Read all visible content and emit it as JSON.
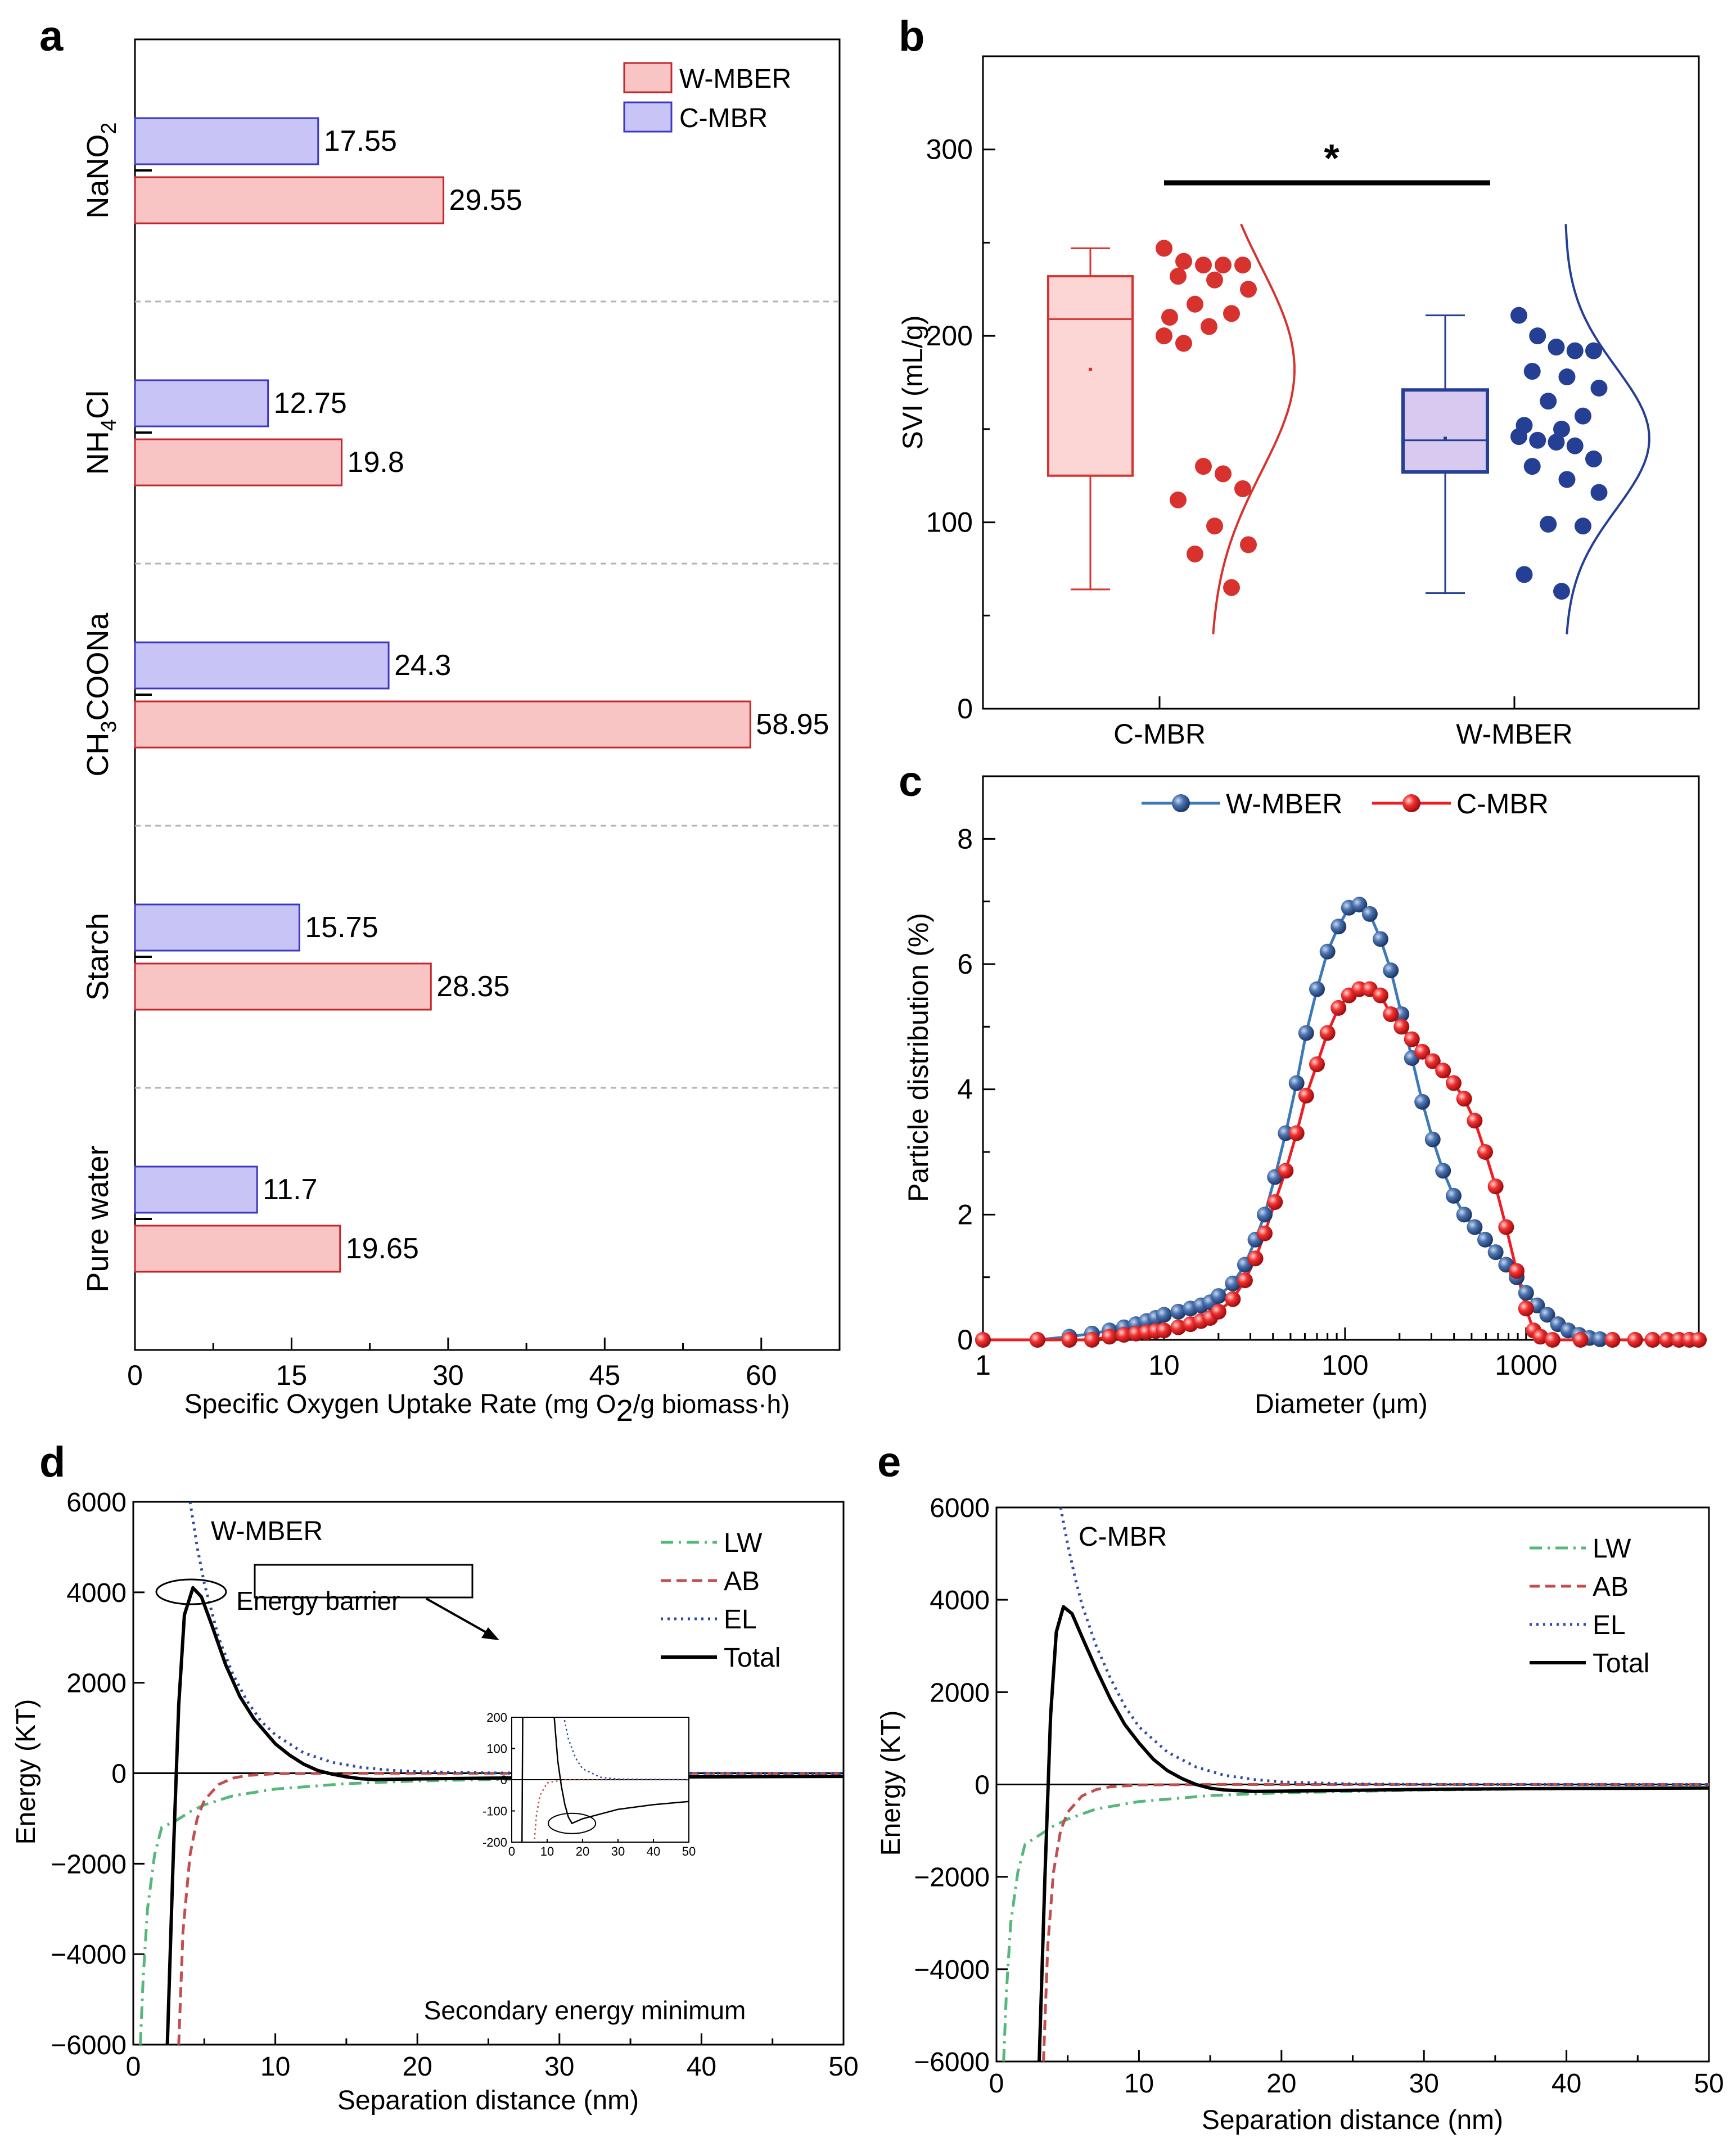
{
  "colors": {
    "wmber_fill": "#f9c4c4",
    "wmber_edge": "#c4262a",
    "cmbr_fill": "#c9c4f6",
    "cmbr_edge": "#3a37c2",
    "b_red": "#d7322e",
    "b_blue": "#243f93",
    "c_blue": "#2f5f9d",
    "c_blue_line": "#3c79b8",
    "c_red": "#ee1d24",
    "lw": "#55b77a",
    "ab": "#c0504d",
    "el": "#2f4aa3",
    "total": "#000000"
  },
  "chart_data": [
    {
      "panel": "a",
      "type": "bar",
      "orientation": "horizontal",
      "panel_label": "a",
      "categories": [
        "NaNO2",
        "NH4Cl",
        "CH3COONa",
        "Starch",
        "Pure water"
      ],
      "category_labels": [
        {
          "main": "NaNO",
          "sub": "2",
          "tail": ""
        },
        {
          "main": "NH",
          "sub": "4",
          "tail": "Cl"
        },
        {
          "main": "CH",
          "sub": "3",
          "tail": "COONa"
        },
        {
          "main": "Starch",
          "sub": "",
          "tail": ""
        },
        {
          "main": "Pure water",
          "sub": "",
          "tail": ""
        }
      ],
      "series": [
        {
          "name": "W-MBER",
          "values": [
            29.55,
            19.8,
            58.95,
            28.35,
            19.65
          ],
          "labels": [
            "29.55",
            "19.8",
            "58.95",
            "28.35",
            "19.65"
          ]
        },
        {
          "name": "C-MBR",
          "values": [
            17.55,
            12.75,
            24.3,
            15.75,
            11.7
          ],
          "labels": [
            "17.55",
            "12.75",
            "24.3",
            "15.75",
            "11.7"
          ]
        }
      ],
      "legend": [
        "W-MBER",
        "C-MBR"
      ],
      "xlabel": {
        "pre": "Specific Oxygen Uptake Rate ",
        "unit_a": "(mg O",
        "unit_sub": "2",
        "unit_b": "/g biomass·h)"
      },
      "xlim": [
        0,
        67.5
      ],
      "xticks": [
        0,
        15,
        30,
        45,
        60
      ],
      "xtick_labels": [
        "0",
        "15",
        "30",
        "45",
        "60"
      ],
      "grid": false
    },
    {
      "panel": "b",
      "type": "box",
      "panel_label": "b",
      "ylabel": "SVI (mL/g)",
      "ylim": [
        0,
        350
      ],
      "yticks": [
        0,
        100,
        200,
        300
      ],
      "ytick_labels": [
        "0",
        "100",
        "200",
        "300"
      ],
      "categories": [
        "C-MBR",
        "W-MBER"
      ],
      "significance": "*",
      "groups": [
        {
          "name": "C-MBR",
          "min": 64,
          "q1": 125,
          "median": 209,
          "q3": 232,
          "max": 247,
          "mean": 182,
          "points": [
            247,
            240,
            238,
            238,
            238,
            232,
            230,
            225,
            217,
            212,
            210,
            205,
            200,
            196,
            130,
            126,
            118,
            112,
            98,
            88,
            83,
            65
          ]
        },
        {
          "name": "W-MBER",
          "min": 62,
          "q1": 127,
          "median": 144,
          "q3": 171,
          "max": 211,
          "mean": 145,
          "points": [
            211,
            200,
            194,
            192,
            192,
            181,
            178,
            172,
            165,
            157,
            152,
            150,
            146,
            144,
            143,
            141,
            134,
            130,
            123,
            116,
            99,
            98,
            72,
            63
          ]
        }
      ]
    },
    {
      "panel": "c",
      "type": "line",
      "panel_label": "c",
      "xlabel": "Diameter (μm)",
      "ylabel": "Particle distribution (%)",
      "xscale": "log",
      "xlim": [
        1,
        9000
      ],
      "ylim": [
        0,
        9
      ],
      "xticks": [
        1,
        10,
        100,
        1000
      ],
      "xtick_labels": [
        "1",
        "10",
        "100",
        "1000"
      ],
      "yticks": [
        0,
        2,
        4,
        6,
        8
      ],
      "ytick_labels": [
        "0",
        "2",
        "4",
        "6",
        "8"
      ],
      "legend": [
        "W-MBER",
        "C-MBR"
      ],
      "legend_position": "top-center",
      "series": [
        {
          "name": "W-MBER",
          "x": [
            1,
            2,
            3,
            4,
            5,
            6,
            7,
            8,
            9,
            10,
            12,
            14,
            16,
            18,
            20,
            24,
            28,
            32,
            36,
            41,
            47,
            54,
            61,
            70,
            80,
            92,
            105,
            120,
            137,
            157,
            179,
            205,
            234,
            267,
            305,
            348,
            398,
            455,
            520,
            594,
            679,
            776,
            887,
            1000,
            1150,
            1310,
            1500,
            1710,
            1960,
            2240,
            2560,
            3000,
            4000,
            5000,
            6000,
            7000,
            8000,
            9000
          ],
          "y": [
            0,
            0,
            0.05,
            0.1,
            0.15,
            0.2,
            0.25,
            0.3,
            0.35,
            0.4,
            0.45,
            0.5,
            0.55,
            0.6,
            0.7,
            0.9,
            1.2,
            1.6,
            2.0,
            2.6,
            3.3,
            4.1,
            4.9,
            5.6,
            6.2,
            6.6,
            6.9,
            6.95,
            6.8,
            6.4,
            5.9,
            5.2,
            4.5,
            3.8,
            3.2,
            2.7,
            2.3,
            2.0,
            1.8,
            1.6,
            1.4,
            1.2,
            1.0,
            0.75,
            0.55,
            0.4,
            0.25,
            0.15,
            0.08,
            0.03,
            0.01,
            0,
            0,
            0,
            0,
            0,
            0,
            0
          ]
        },
        {
          "name": "C-MBR",
          "x": [
            1,
            2,
            3,
            4,
            5,
            6,
            7,
            8,
            9,
            10,
            12,
            14,
            16,
            18,
            20,
            24,
            28,
            32,
            36,
            41,
            47,
            54,
            61,
            70,
            80,
            92,
            105,
            120,
            137,
            157,
            179,
            205,
            234,
            267,
            305,
            348,
            398,
            455,
            520,
            594,
            679,
            776,
            887,
            1000,
            1100,
            1200,
            1400,
            2000,
            3000,
            4000,
            5000,
            6000,
            7000,
            8000,
            9000
          ],
          "y": [
            0,
            0,
            0,
            0,
            0.05,
            0.08,
            0.1,
            0.12,
            0.14,
            0.15,
            0.2,
            0.25,
            0.3,
            0.35,
            0.45,
            0.65,
            0.95,
            1.3,
            1.7,
            2.2,
            2.7,
            3.3,
            3.9,
            4.4,
            4.9,
            5.3,
            5.5,
            5.6,
            5.6,
            5.5,
            5.2,
            5.0,
            4.8,
            4.6,
            4.45,
            4.3,
            4.1,
            3.85,
            3.5,
            3.0,
            2.45,
            1.8,
            1.1,
            0.5,
            0.15,
            0.05,
            0,
            0,
            0,
            0,
            0,
            0,
            0,
            0,
            0
          ]
        }
      ]
    },
    {
      "panel": "d",
      "type": "line",
      "panel_label": "d",
      "title": "W-MBER",
      "xlabel": "Separation distance (nm)",
      "ylabel": "Energy (KT)",
      "xlim": [
        0,
        50
      ],
      "ylim": [
        -6000,
        6000
      ],
      "xticks": [
        0,
        10,
        20,
        30,
        40,
        50
      ],
      "xtick_labels": [
        "0",
        "10",
        "20",
        "30",
        "40",
        "50"
      ],
      "yticks": [
        -6000,
        -4000,
        -2000,
        0,
        2000,
        4000,
        6000
      ],
      "ytick_labels": [
        "−6000",
        "−4000",
        "−2000",
        "0",
        "2000",
        "4000",
        "6000"
      ],
      "legend": [
        "LW",
        "AB",
        "EL",
        "Total"
      ],
      "legend_position": "top-right",
      "annotations": [
        "Energy barrier",
        "Secondary energy minimum"
      ],
      "barrier": {
        "x": 4.2,
        "y": 4100
      },
      "secondary_minimum": {
        "x": 17,
        "y": -140
      },
      "series": [
        {
          "name": "LW",
          "x": [
            0.5,
            0.7,
            1,
            1.5,
            2,
            3,
            4,
            5,
            7,
            10,
            15,
            20,
            30,
            40,
            50
          ],
          "y": [
            -6000,
            -4500,
            -3000,
            -1800,
            -1200,
            -1050,
            -850,
            -700,
            -500,
            -350,
            -230,
            -170,
            -110,
            -85,
            -70
          ]
        },
        {
          "name": "AB",
          "x": [
            3.2,
            3.5,
            4,
            4.5,
            5,
            6,
            7,
            8,
            10,
            15,
            20,
            50
          ],
          "y": [
            -6000,
            -3500,
            -1800,
            -1000,
            -600,
            -250,
            -110,
            -50,
            -10,
            0,
            0,
            0
          ]
        },
        {
          "name": "EL",
          "x": [
            4,
            4.5,
            5,
            6,
            7,
            8,
            9,
            10,
            12,
            14,
            16,
            18,
            20,
            25,
            30,
            50
          ],
          "y": [
            6000,
            5000,
            4200,
            3000,
            2200,
            1600,
            1150,
            850,
            450,
            240,
            130,
            70,
            35,
            8,
            2,
            0
          ]
        },
        {
          "name": "Total",
          "x": [
            2.4,
            2.8,
            3.2,
            3.6,
            4.2,
            4.8,
            5.5,
            6.5,
            7.5,
            8.5,
            10,
            11,
            12,
            13,
            14,
            15,
            16,
            17,
            18,
            20,
            25,
            30,
            40,
            50
          ],
          "y": [
            -6000,
            -2000,
            1500,
            3500,
            4100,
            3900,
            3300,
            2400,
            1700,
            1200,
            650,
            400,
            200,
            60,
            -20,
            -80,
            -120,
            -140,
            -135,
            -125,
            -110,
            -95,
            -80,
            -70
          ]
        }
      ],
      "inset": {
        "xlim": [
          0,
          50
        ],
        "ylim": [
          -200,
          200
        ],
        "xticks": [
          0,
          10,
          20,
          30,
          40,
          50
        ],
        "xtick_labels": [
          "0",
          "10",
          "20",
          "30",
          "40",
          "50"
        ],
        "yticks": [
          -200,
          -100,
          0,
          100,
          200
        ],
        "ytick_labels": [
          "-200",
          "-100",
          "0",
          "100",
          "200"
        ]
      }
    },
    {
      "panel": "e",
      "type": "line",
      "panel_label": "e",
      "title": "C-MBR",
      "xlabel": "Separation distance (nm)",
      "ylabel": "Energy (KT)",
      "xlim": [
        0,
        50
      ],
      "ylim": [
        -6000,
        6000
      ],
      "xticks": [
        0,
        10,
        20,
        30,
        40,
        50
      ],
      "xtick_labels": [
        "0",
        "10",
        "20",
        "30",
        "40",
        "50"
      ],
      "yticks": [
        -6000,
        -4000,
        -2000,
        0,
        2000,
        4000,
        6000
      ],
      "ytick_labels": [
        "−6000",
        "−4000",
        "−2000",
        "0",
        "2000",
        "4000",
        "6000"
      ],
      "legend": [
        "LW",
        "AB",
        "EL",
        "Total"
      ],
      "legend_position": "top-right",
      "series": [
        {
          "name": "LW",
          "x": [
            0.5,
            0.7,
            1,
            1.5,
            2,
            3,
            4,
            5,
            7,
            10,
            15,
            20,
            30,
            40,
            50
          ],
          "y": [
            -6000,
            -4500,
            -3000,
            -1900,
            -1300,
            -1100,
            -900,
            -750,
            -530,
            -370,
            -240,
            -180,
            -120,
            -90,
            -75
          ]
        },
        {
          "name": "AB",
          "x": [
            3.3,
            3.6,
            4,
            4.5,
            5,
            6,
            7,
            8,
            10,
            15,
            20,
            50
          ],
          "y": [
            -6000,
            -3500,
            -1900,
            -1000,
            -600,
            -250,
            -110,
            -50,
            -10,
            0,
            0,
            0
          ]
        },
        {
          "name": "EL",
          "x": [
            4.5,
            5,
            5.5,
            6,
            7,
            8,
            9,
            10,
            12,
            14,
            16,
            18,
            20,
            25,
            30,
            50
          ],
          "y": [
            6000,
            5200,
            4500,
            3900,
            3000,
            2300,
            1700,
            1250,
            700,
            380,
            200,
            110,
            55,
            12,
            3,
            0
          ]
        },
        {
          "name": "Total",
          "x": [
            3.0,
            3.4,
            3.8,
            4.2,
            4.7,
            5.3,
            6,
            7,
            8,
            9,
            10,
            11,
            12,
            13,
            14,
            15,
            16,
            18,
            20,
            25,
            30,
            40,
            50
          ],
          "y": [
            -6000,
            -2000,
            1500,
            3300,
            3850,
            3700,
            3200,
            2500,
            1850,
            1300,
            900,
            550,
            300,
            130,
            0,
            -80,
            -120,
            -150,
            -145,
            -125,
            -105,
            -85,
            -75
          ]
        }
      ]
    }
  ]
}
